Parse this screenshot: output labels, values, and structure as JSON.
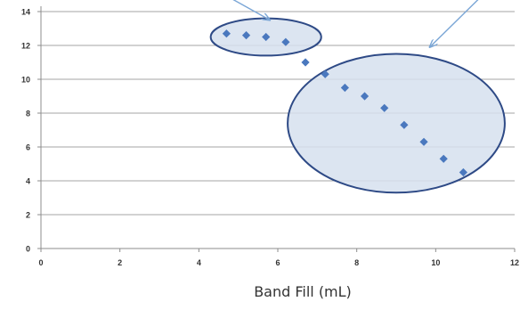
{
  "chart_data": {
    "type": "scatter",
    "title": "",
    "xlabel": "Band Fill (mL)",
    "ylabel": "",
    "xlim": [
      0,
      12
    ],
    "ylim": [
      0,
      14
    ],
    "x_ticks": [
      0,
      2,
      4,
      6,
      8,
      10,
      12
    ],
    "y_ticks": [
      0,
      2,
      4,
      6,
      8,
      10,
      12,
      14
    ],
    "x_tick_labels": [
      "0",
      "2",
      "4",
      "6",
      "8",
      "10",
      "12"
    ],
    "y_tick_labels": [
      "0",
      "2",
      "4",
      "6",
      "8",
      "10",
      "12",
      "14"
    ],
    "grid": "horizontal",
    "series": [
      {
        "color": "#4a78be",
        "marker": "diamond",
        "x": [
          4.7,
          5.2,
          5.7,
          6.2,
          6.7,
          7.2,
          7.7,
          8.2,
          8.7,
          9.2,
          9.7,
          10.2,
          10.7
        ],
        "y": [
          12.7,
          12.6,
          12.5,
          12.2,
          11.0,
          10.3,
          9.5,
          9.0,
          8.3,
          7.3,
          6.3,
          5.3,
          4.5
        ]
      }
    ],
    "annotations": [
      {
        "type": "ellipse",
        "center": [
          5.7,
          12.5
        ],
        "radii": [
          1.4,
          1.1
        ],
        "fill": "#d6e0ee",
        "stroke": "#2e4a86"
      },
      {
        "type": "ellipse",
        "center": [
          9.0,
          7.4
        ],
        "radii": [
          2.75,
          4.1
        ],
        "fill": "#d6e0ee",
        "stroke": "#2e4a86"
      },
      {
        "type": "arrow",
        "from": [
          4.8,
          14.8
        ],
        "to": [
          5.8,
          13.5
        ],
        "color": "#7aa6d6"
      },
      {
        "type": "arrow",
        "from": [
          11.2,
          15.0
        ],
        "to": [
          9.85,
          11.9
        ],
        "color": "#7aa6d6"
      }
    ]
  }
}
